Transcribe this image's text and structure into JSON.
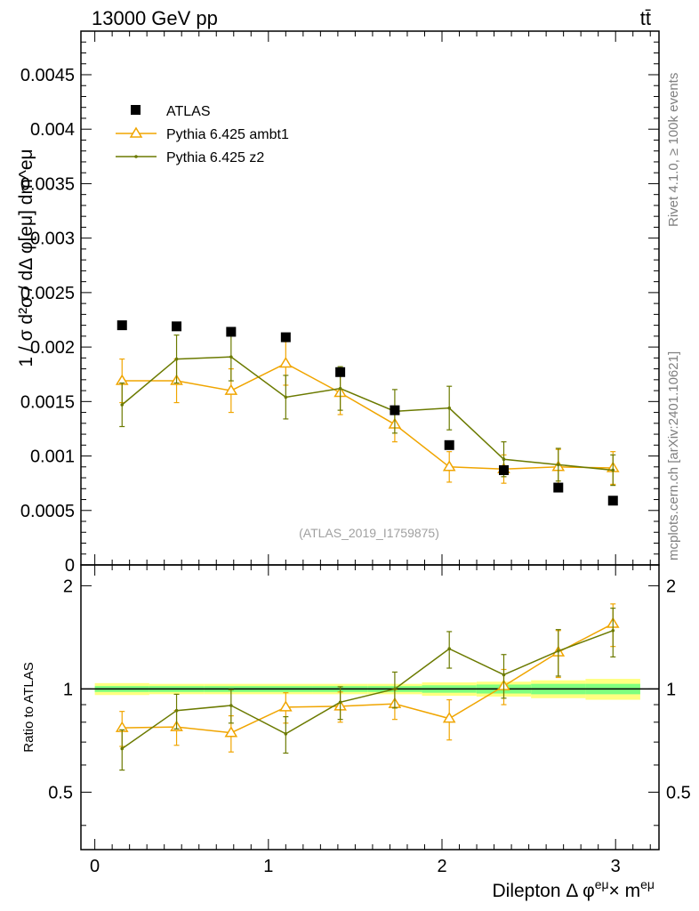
{
  "header": {
    "left": "13000 GeV pp",
    "right": "tt̄",
    "side_rivet": "Rivet 4.1.0, ≥ 100k events",
    "side_mcplots": "mcplots.cern.ch [arXiv:2401.10621]"
  },
  "watermark": "(ATLAS_2019_I1759875)",
  "colors": {
    "atlas": "#000000",
    "ambt1": "#f0a500",
    "z2": "#6b7a00",
    "band_green": "#7fff7f",
    "band_yellow": "#ffff80"
  },
  "chart_data": [
    {
      "type": "scatter",
      "panel": "main",
      "ylabel": "1 / σ  d²σ / dΔ φ[eμ] dm^eμ",
      "yticks": [
        "0",
        "0.0005",
        "0.001",
        "0.0015",
        "0.002",
        "0.0025",
        "0.003",
        "0.0035",
        "0.004",
        "0.0045"
      ],
      "ylim": [
        0,
        0.0049
      ],
      "xlim": [
        -0.08,
        3.25
      ],
      "legend": {
        "placement": "top-left",
        "entries": [
          "ATLAS",
          "Pythia 6.425 ambt1",
          "Pythia 6.425 z2"
        ]
      },
      "x": [
        0.157,
        0.471,
        0.785,
        1.1,
        1.414,
        1.728,
        2.042,
        2.356,
        2.67,
        2.985
      ],
      "series": [
        {
          "name": "ATLAS",
          "style": "markers-square",
          "values": [
            0.0022,
            0.00219,
            0.00214,
            0.00209,
            0.00177,
            0.00142,
            0.0011,
            0.00087,
            0.00071,
            0.00059
          ]
        },
        {
          "name": "Pythia 6.425 ambt1",
          "style": "line-triangle",
          "values": [
            0.00169,
            0.00169,
            0.0016,
            0.00185,
            0.00158,
            0.00129,
            0.0009,
            0.00088,
            0.0009,
            0.00089
          ],
          "err": [
            0.0002,
            0.0002,
            0.0002,
            0.0002,
            0.0002,
            0.00016,
            0.00014,
            0.00013,
            0.00016,
            0.00015
          ]
        },
        {
          "name": "Pythia 6.425 z2",
          "style": "line-dot",
          "values": [
            0.00147,
            0.00189,
            0.00191,
            0.00154,
            0.00162,
            0.00141,
            0.00144,
            0.00097,
            0.00092,
            0.00087
          ],
          "err": [
            0.0002,
            0.00022,
            0.00022,
            0.0002,
            0.0002,
            0.0002,
            0.0002,
            0.00016,
            0.00015,
            0.00014
          ]
        }
      ]
    },
    {
      "type": "scatter",
      "panel": "ratio",
      "ylabel": "Ratio to ATLAS",
      "xlabel_main": "Dilepton Δ φ",
      "xlabel_sup1": "eμ",
      "xlabel_times": "× m",
      "xlabel_sup2": "eμ",
      "yticks": [
        "0.5",
        "1",
        "2"
      ],
      "ytick_values": [
        0.5,
        1,
        2
      ],
      "xticks": [
        "0",
        "1",
        "2",
        "3"
      ],
      "xtick_values": [
        0,
        1,
        2,
        3
      ],
      "ylim": [
        0.34,
        2.3
      ],
      "xlim": [
        -0.08,
        3.25
      ],
      "reference": 1,
      "band_bins": [
        0,
        0.314,
        0.628,
        0.942,
        1.257,
        1.571,
        1.885,
        2.199,
        2.513,
        2.827,
        3.142
      ],
      "band_inner": [
        0.02,
        0.02,
        0.02,
        0.02,
        0.02,
        0.02,
        0.025,
        0.03,
        0.035,
        0.035
      ],
      "band_outer": [
        0.04,
        0.035,
        0.035,
        0.035,
        0.035,
        0.035,
        0.045,
        0.05,
        0.06,
        0.07
      ],
      "x": [
        0.157,
        0.471,
        0.785,
        1.1,
        1.414,
        1.728,
        2.042,
        2.356,
        2.67,
        2.985
      ],
      "series": [
        {
          "name": "Pythia 6.425 ambt1",
          "values": [
            0.77,
            0.775,
            0.745,
            0.885,
            0.89,
            0.905,
            0.82,
            1.02,
            1.28,
            1.55
          ],
          "err": [
            0.09,
            0.09,
            0.09,
            0.09,
            0.09,
            0.09,
            0.11,
            0.12,
            0.2,
            0.22
          ]
        },
        {
          "name": "Pythia 6.425 z2",
          "values": [
            0.67,
            0.865,
            0.895,
            0.74,
            0.915,
            1.0,
            1.31,
            1.1,
            1.29,
            1.48
          ],
          "err": [
            0.09,
            0.1,
            0.1,
            0.09,
            0.1,
            0.12,
            0.16,
            0.16,
            0.2,
            0.24
          ]
        }
      ]
    }
  ]
}
